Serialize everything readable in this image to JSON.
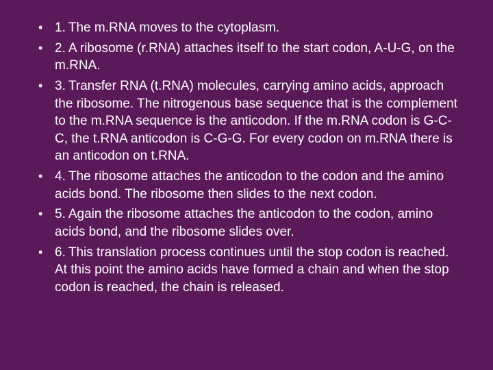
{
  "background_color": "#5a1a5a",
  "text_color": "#ffffff",
  "font_family": "Arial",
  "font_size_pt": 19,
  "line_height": 1.35,
  "bullet_char": "•",
  "items": [
    {
      "number": "1.",
      "text": "The m.RNA moves to the cytoplasm."
    },
    {
      "number": "2.",
      "text": "A ribosome (r.RNA) attaches itself to the start codon, A-U-G, on the m.RNA."
    },
    {
      "number": "3.",
      "text": "Transfer RNA (t.RNA) molecules, carrying amino acids, approach the ribosome. The nitrogenous base sequence that is the complement to the m.RNA sequence is the anticodon. If the m.RNA codon is G-C-C, the t.RNA anticodon is C-G-G. For every codon on m.RNA there is an anticodon on t.RNA."
    },
    {
      "number": "4.",
      "text": "The ribosome attaches the anticodon to the codon and the amino acids bond. The ribosome then slides to the next codon."
    },
    {
      "number": "5.",
      "text": "Again the ribosome attaches the anticodon to the codon, amino acids bond, and the ribosome slides over."
    },
    {
      "number": "6.",
      "text": "This translation process continues until the stop codon is reached. At this point the amino acids have formed a chain and when the stop codon is reached, the chain is released."
    }
  ]
}
